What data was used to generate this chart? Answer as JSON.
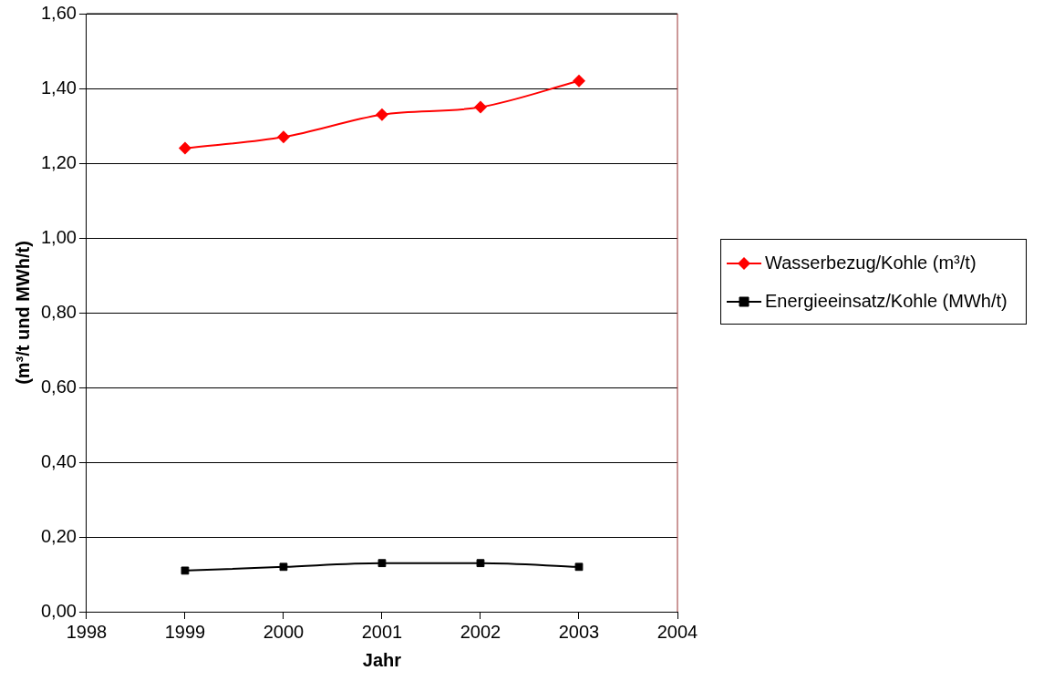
{
  "chart_data": {
    "type": "line",
    "xlabel": "Jahr",
    "ylabel": "(m³/t und MWh/t)",
    "x": [
      1999,
      2000,
      2001,
      2002,
      2003
    ],
    "series": [
      {
        "name": "Wasserbezug/Kohle (m³/t)",
        "color": "#ff0000",
        "marker": "diamond",
        "values": [
          1.24,
          1.27,
          1.33,
          1.35,
          1.42
        ]
      },
      {
        "name": "Energieeinsatz/Kohle (MWh/t)",
        "color": "#000000",
        "marker": "square",
        "values": [
          0.11,
          0.12,
          0.13,
          0.13,
          0.12
        ]
      }
    ],
    "xlim": [
      1998,
      2004
    ],
    "xticks": [
      1998,
      1999,
      2000,
      2001,
      2002,
      2003,
      2004
    ],
    "ylim": [
      0,
      1.6
    ],
    "yticks": [
      {
        "value": 0,
        "label": "0,00"
      },
      {
        "value": 0.2,
        "label": "0,20"
      },
      {
        "value": 0.4,
        "label": "0,40"
      },
      {
        "value": 0.6,
        "label": "0,60"
      },
      {
        "value": 0.8,
        "label": "0,80"
      },
      {
        "value": 1,
        "label": "1,00"
      },
      {
        "value": 1.2,
        "label": "1,20"
      },
      {
        "value": 1.4,
        "label": "1,40"
      },
      {
        "value": 1.6,
        "label": "1,60"
      }
    ],
    "grid": "y",
    "legend": "right"
  }
}
